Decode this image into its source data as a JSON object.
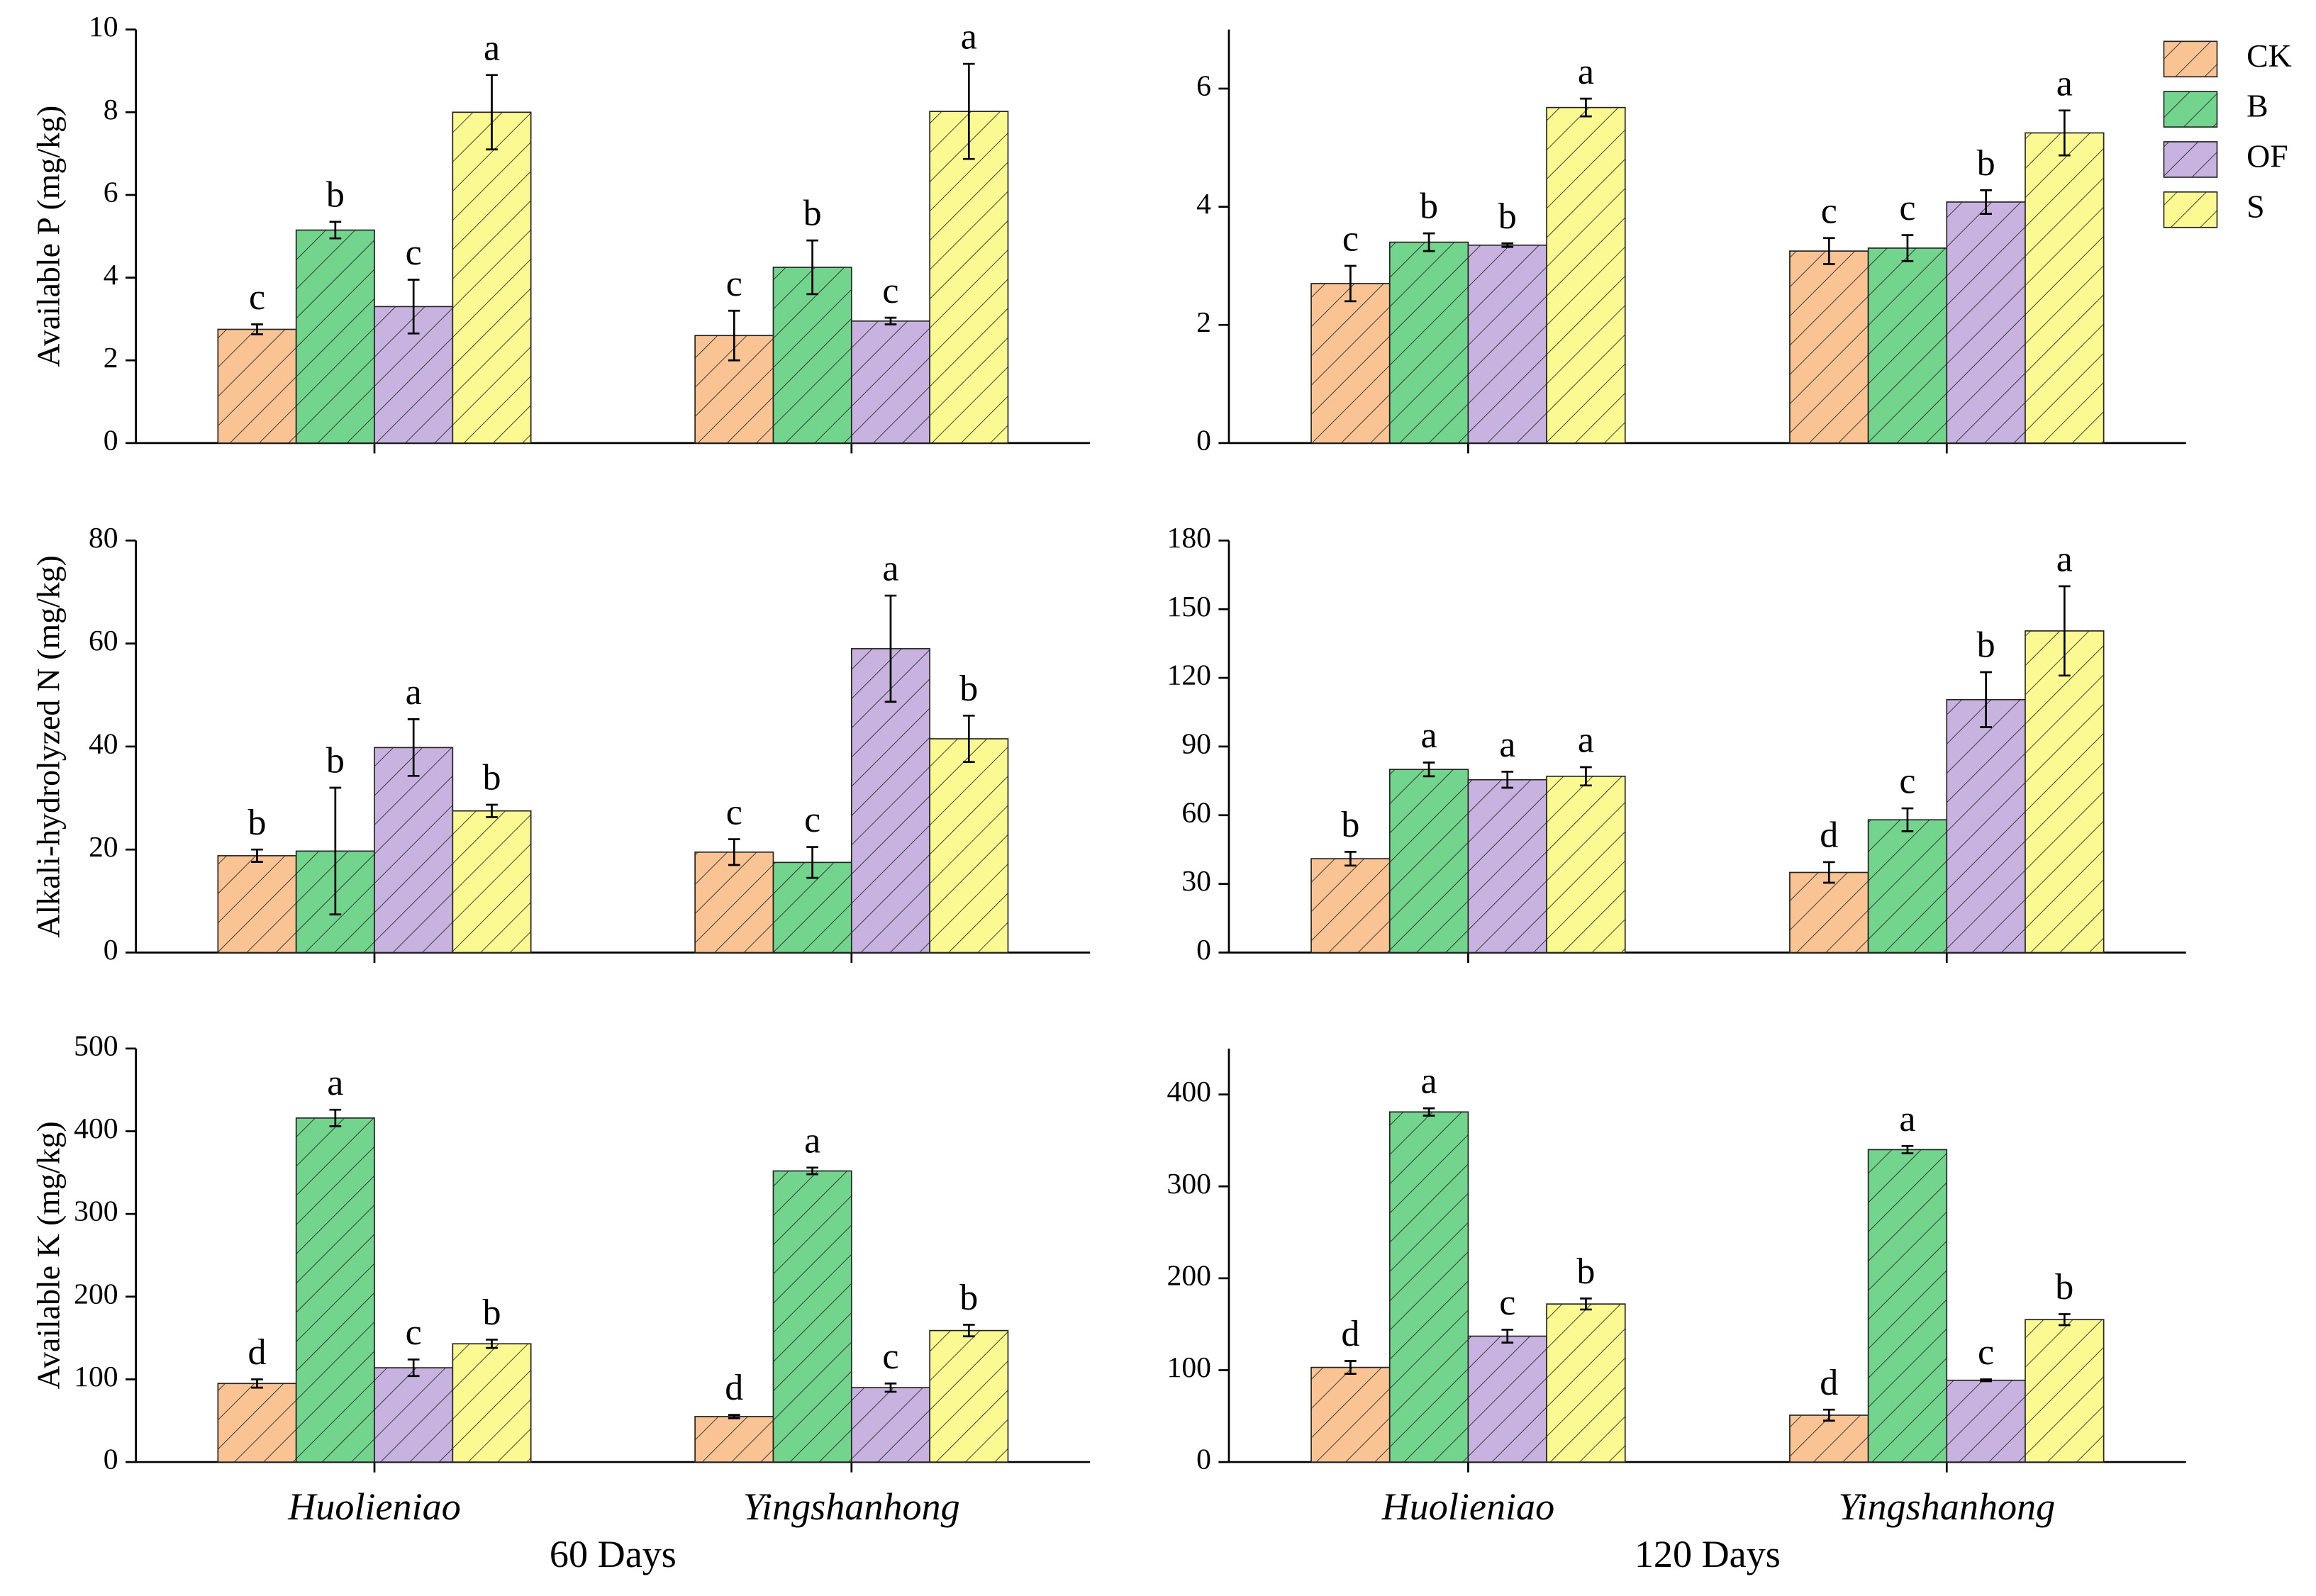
{
  "chart_data": [
    {
      "type": "bar",
      "ylabel": "Available P (mg/kg)",
      "ylim": [
        0,
        10
      ],
      "yticks": [
        0,
        2,
        4,
        6,
        8,
        10
      ],
      "series": [
        {
          "color": "#f9c393",
          "values": [
            2.75,
            2.6
          ],
          "errors": [
            0.12,
            0.6
          ],
          "letters": [
            "c",
            "c"
          ]
        },
        {
          "color": "#72d48d",
          "values": [
            5.15,
            4.25
          ],
          "errors": [
            0.2,
            0.65
          ],
          "letters": [
            "b",
            "b"
          ]
        },
        {
          "color": "#c8b3e0",
          "values": [
            3.3,
            2.95
          ],
          "errors": [
            0.65,
            0.08
          ],
          "letters": [
            "c",
            "c"
          ]
        },
        {
          "color": "#fbfa92",
          "values": [
            8.0,
            8.02
          ],
          "errors": [
            0.9,
            1.15
          ],
          "letters": [
            "a",
            "a"
          ]
        }
      ]
    },
    {
      "type": "bar",
      "ylim": [
        0,
        7
      ],
      "yticks": [
        0,
        2,
        4,
        6
      ],
      "legend": "top-right",
      "series": [
        {
          "name": "CK",
          "color": "#f9c393",
          "values": [
            2.7,
            3.25
          ],
          "errors": [
            0.3,
            0.22
          ],
          "letters": [
            "c",
            "c"
          ]
        },
        {
          "name": "B",
          "color": "#72d48d",
          "values": [
            3.4,
            3.3
          ],
          "errors": [
            0.15,
            0.22
          ],
          "letters": [
            "b",
            "c"
          ]
        },
        {
          "name": "OF",
          "color": "#c8b3e0",
          "values": [
            3.35,
            4.08
          ],
          "errors": [
            0.03,
            0.2
          ],
          "letters": [
            "b",
            "b"
          ]
        },
        {
          "name": "S",
          "color": "#fbfa92",
          "values": [
            5.68,
            5.25
          ],
          "errors": [
            0.15,
            0.38
          ],
          "letters": [
            "a",
            "a"
          ]
        }
      ]
    },
    {
      "type": "bar",
      "ylabel": "Alkali-hydrolyzed N (mg/kg)",
      "ylim": [
        0,
        80
      ],
      "yticks": [
        0,
        20,
        40,
        60,
        80
      ],
      "series": [
        {
          "color": "#f9c393",
          "values": [
            18.8,
            19.5
          ],
          "errors": [
            1.2,
            2.5
          ],
          "letters": [
            "b",
            "c"
          ]
        },
        {
          "color": "#72d48d",
          "values": [
            19.7,
            17.5
          ],
          "errors": [
            12.3,
            3
          ],
          "letters": [
            "b",
            "c"
          ]
        },
        {
          "color": "#c8b3e0",
          "values": [
            39.8,
            59
          ],
          "errors": [
            5.5,
            10.3
          ],
          "letters": [
            "a",
            "a"
          ]
        },
        {
          "color": "#fbfa92",
          "values": [
            27.5,
            41.5
          ],
          "errors": [
            1.2,
            4.5
          ],
          "letters": [
            "b",
            "b"
          ]
        }
      ]
    },
    {
      "type": "bar",
      "ylim": [
        0,
        180
      ],
      "yticks": [
        0,
        30,
        60,
        90,
        120,
        150,
        180
      ],
      "series": [
        {
          "color": "#f9c393",
          "values": [
            41,
            35
          ],
          "errors": [
            3,
            4.5
          ],
          "letters": [
            "b",
            "d"
          ]
        },
        {
          "color": "#72d48d",
          "values": [
            80,
            58
          ],
          "errors": [
            3,
            5
          ],
          "letters": [
            "a",
            "c"
          ]
        },
        {
          "color": "#c8b3e0",
          "values": [
            75.5,
            110.5
          ],
          "errors": [
            3.5,
            12
          ],
          "letters": [
            "a",
            "b"
          ]
        },
        {
          "color": "#fbfa92",
          "values": [
            77,
            140.5
          ],
          "errors": [
            4,
            19.5
          ],
          "letters": [
            "a",
            "a"
          ]
        }
      ]
    },
    {
      "type": "bar",
      "ylabel": "Available K (mg/kg)",
      "xlabel": "60 Days",
      "categories": [
        "Huolieniao",
        "Yingshanhong"
      ],
      "ylim": [
        0,
        500
      ],
      "yticks": [
        0,
        100,
        200,
        300,
        400,
        500
      ],
      "series": [
        {
          "color": "#f9c393",
          "values": [
            95,
            55
          ],
          "errors": [
            5,
            2
          ],
          "letters": [
            "d",
            "d"
          ]
        },
        {
          "color": "#72d48d",
          "values": [
            416,
            352
          ],
          "errors": [
            10,
            4
          ],
          "letters": [
            "a",
            "a"
          ]
        },
        {
          "color": "#c8b3e0",
          "values": [
            114,
            90
          ],
          "errors": [
            10,
            5
          ],
          "letters": [
            "c",
            "c"
          ]
        },
        {
          "color": "#fbfa92",
          "values": [
            143,
            159
          ],
          "errors": [
            5,
            7
          ],
          "letters": [
            "b",
            "b"
          ]
        }
      ]
    },
    {
      "type": "bar",
      "xlabel": "120 Days",
      "categories": [
        "Huolieniao",
        "Yingshanhong"
      ],
      "ylim": [
        0,
        450
      ],
      "yticks": [
        0,
        100,
        200,
        300,
        400
      ],
      "series": [
        {
          "color": "#f9c393",
          "values": [
            103,
            51
          ],
          "errors": [
            7,
            6
          ],
          "letters": [
            "d",
            "d"
          ]
        },
        {
          "color": "#72d48d",
          "values": [
            381,
            340
          ],
          "errors": [
            4,
            4
          ],
          "letters": [
            "a",
            "a"
          ]
        },
        {
          "color": "#c8b3e0",
          "values": [
            137,
            89
          ],
          "errors": [
            7,
            1
          ],
          "letters": [
            "c",
            "c"
          ]
        },
        {
          "color": "#fbfa92",
          "values": [
            172,
            155
          ],
          "errors": [
            6,
            6
          ],
          "letters": [
            "b",
            "b"
          ]
        }
      ]
    }
  ]
}
